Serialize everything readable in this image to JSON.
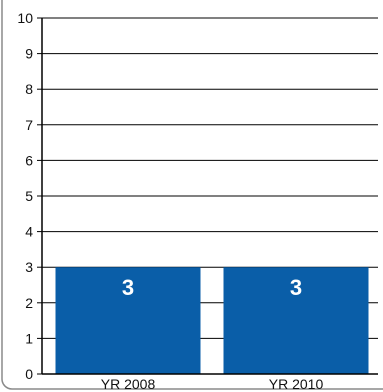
{
  "chart_data": {
    "type": "bar",
    "categories": [
      "YR 2008",
      "YR 2010"
    ],
    "values": [
      3,
      3
    ],
    "data_labels": [
      "3",
      "3"
    ],
    "y_ticks": [
      "0",
      "1",
      "2",
      "3",
      "4",
      "5",
      "6",
      "7",
      "8",
      "9",
      "10"
    ],
    "ylim": [
      0,
      10
    ],
    "grid": true,
    "legend": "none",
    "title": "",
    "xlabel": "",
    "ylabel": ""
  },
  "colors": {
    "bar": "#0a5ea8",
    "grid": "#000000",
    "axis": "#000000",
    "frame": "#8a8a8a"
  }
}
